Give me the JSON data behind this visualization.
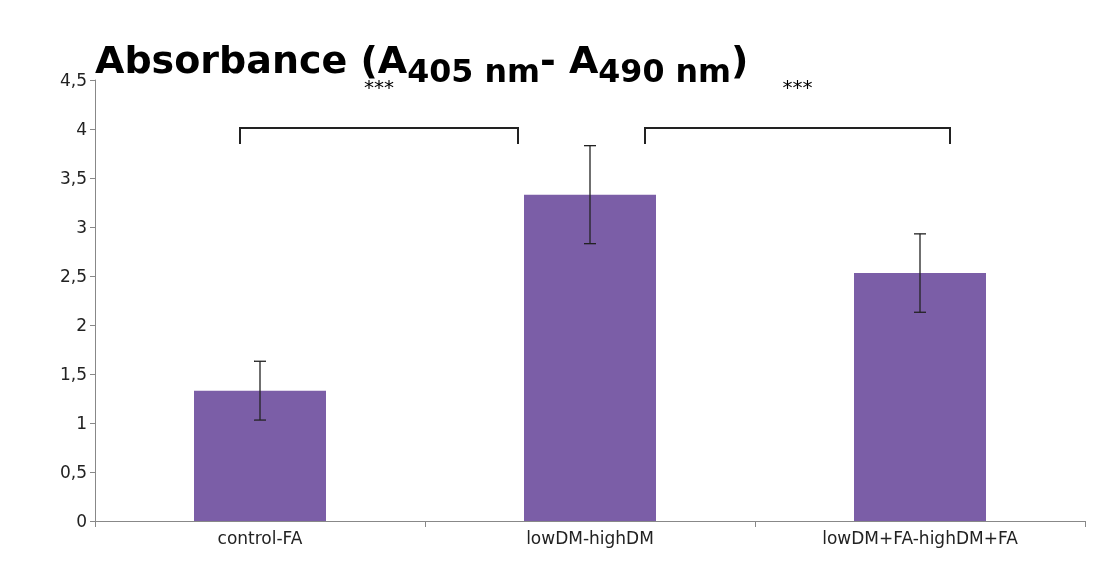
{
  "chart_data": {
    "type": "bar",
    "title": "Absorbance (A$_{405 nm}$- A$_{490 nm}$)",
    "categories": [
      "control-FA",
      "lowDM-highDM",
      "lowDM+FA-highDM+FA"
    ],
    "values": [
      1.33,
      3.33,
      2.53
    ],
    "errors": [
      0.3,
      0.5,
      0.4
    ],
    "color": "#7b5ea7",
    "ylim": [
      0,
      4.5
    ],
    "yticks": [
      0,
      {
        "value": 0.5,
        "label": "0,5"
      },
      1,
      {
        "value": 1.5,
        "label": "1,5"
      },
      2,
      {
        "value": 2.5,
        "label": "2,5"
      },
      3,
      {
        "value": 3.5,
        "label": "3,5"
      },
      4,
      {
        "value": 4.5,
        "label": "4,5"
      }
    ],
    "grid": false,
    "annotations": [
      "***",
      "***"
    ]
  }
}
